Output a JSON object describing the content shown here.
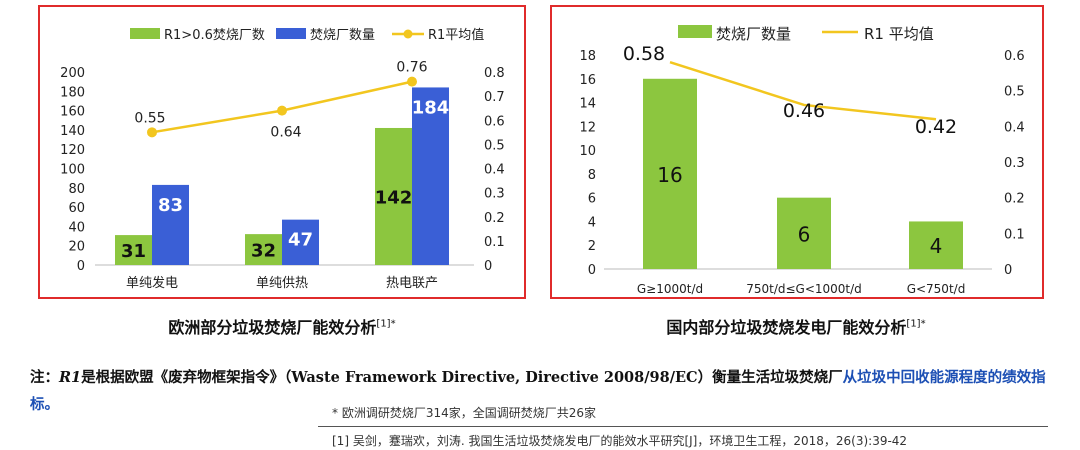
{
  "colors": {
    "green": "#8cc63f",
    "blue": "#3a5fd6",
    "yellow": "#f2c61f",
    "red": "#e02b2b"
  },
  "chart_data": [
    {
      "type": "bar",
      "caption": "欧洲部分垃圾焚烧厂能效分析",
      "caption_ref": "[1]*",
      "categories": [
        "单纯发电",
        "单纯供热",
        "热电联产"
      ],
      "series": [
        {
          "name": "R1>0.6焚烧厂数",
          "values": [
            31,
            32,
            142
          ],
          "axis": "left",
          "color": "#8cc63f"
        },
        {
          "name": "焚烧厂数量",
          "values": [
            83,
            47,
            184
          ],
          "axis": "left",
          "color": "#3a5fd6"
        },
        {
          "name": "R1平均值",
          "values": [
            0.55,
            0.64,
            0.76
          ],
          "axis": "right",
          "type": "line",
          "color": "#f2c61f"
        }
      ],
      "left_ticks": [
        "200",
        "180",
        "160",
        "140",
        "120",
        "100",
        "80",
        "60",
        "40",
        "20",
        "0"
      ],
      "right_ticks": [
        "0.8",
        "0.7",
        "0.6",
        "0.5",
        "0.4",
        "0.3",
        "0.2",
        "0.1",
        "0"
      ],
      "ylim_left": [
        0,
        200
      ],
      "ylim_right": [
        0,
        0.8
      ],
      "line_labels": [
        "0.55",
        "0.64",
        "0.76"
      ],
      "legend_position": "top"
    },
    {
      "type": "bar",
      "caption": "国内部分垃圾焚烧发电厂能效分析",
      "caption_ref": "[1]*",
      "categories": [
        "G≥1000t/d",
        "750t/d≤G<1000t/d",
        "G<750t/d"
      ],
      "series": [
        {
          "name": "焚烧厂数量",
          "values": [
            16,
            6,
            4
          ],
          "axis": "left",
          "color": "#8cc63f"
        },
        {
          "name": "R1 平均值",
          "values": [
            0.58,
            0.46,
            0.42
          ],
          "axis": "right",
          "type": "line",
          "color": "#f2c61f"
        }
      ],
      "left_ticks": [
        "18",
        "16",
        "14",
        "12",
        "10",
        "8",
        "6",
        "4",
        "2",
        "0"
      ],
      "right_ticks": [
        "0.6",
        "0.5",
        "0.4",
        "0.3",
        "0.2",
        "0.1",
        "0"
      ],
      "ylim_left": [
        0,
        18
      ],
      "ylim_right": [
        0,
        0.6
      ],
      "line_labels": [
        "0.58",
        "0.46",
        "0.42"
      ],
      "legend_position": "top"
    }
  ],
  "note": {
    "prefix": "注：",
    "r1": "R1",
    "text1": "是根据欧盟《废弃物框架指令》（Waste Framework Directive, Directive 2008/98/EC）衡量生活垃圾焚烧厂",
    "text_blue": "从垃圾中回收能源程度的绩效指标。"
  },
  "footnote": "* 欧洲调研焚烧厂314家，全国调研焚烧厂共26家",
  "reference": "[1] 吴剑，蹇瑞欢，刘涛. 我国生活垃圾焚烧发电厂的能效水平研究[J]，环境卫生工程，2018，26(3):39-42"
}
